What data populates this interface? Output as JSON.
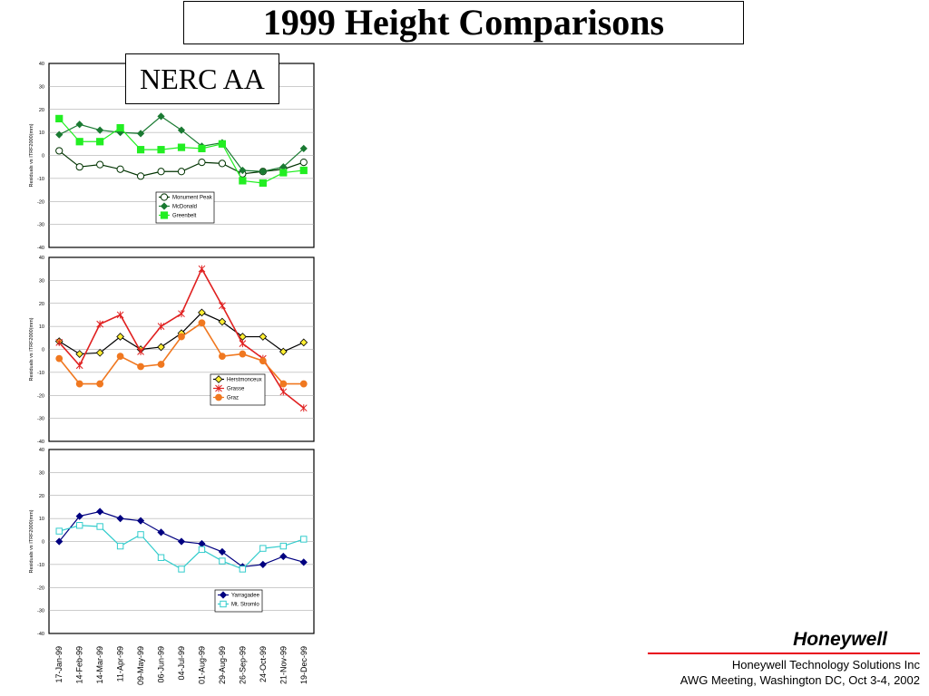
{
  "title": "1999 Height Comparisons",
  "subtitle": "NERC AA",
  "footer": {
    "brand": "Honeywell",
    "line1": "Honeywell Technology Solutions Inc",
    "line2": "AWG Meeting, Washington DC, Oct 3-4, 2002"
  },
  "chart_data": [
    {
      "type": "line",
      "ylabel": "Residuals vs ITRF2000(mm)",
      "ylim": [
        -40,
        40
      ],
      "yticks": [
        40,
        30,
        20,
        10,
        0,
        -10,
        -20,
        -30,
        -40
      ],
      "grid": true,
      "legend": "bottom-center",
      "series": [
        {
          "name": "Monument Peak",
          "color": "#003300",
          "marker": "circle-open",
          "values": [
            2,
            -5,
            -4,
            -6,
            -9,
            -7,
            -7,
            -3,
            -3.5,
            -8,
            -7,
            -6,
            -3
          ]
        },
        {
          "name": "McDonald",
          "color": "#1a7a32",
          "marker": "diamond",
          "values": [
            9,
            13.5,
            11,
            10,
            9.5,
            17,
            11,
            4,
            5.5,
            -6.5,
            -7,
            -5,
            3
          ]
        },
        {
          "name": "Greenbelt",
          "color": "#22ee22",
          "marker": "square",
          "values": [
            16,
            6,
            6,
            12,
            2.5,
            2.5,
            3.5,
            3,
            5,
            -11,
            -12,
            -7.5,
            -6.5
          ]
        }
      ]
    },
    {
      "type": "line",
      "ylabel": "Residuals vs ITRF2000(mm)",
      "ylim": [
        -40,
        40
      ],
      "yticks": [
        40,
        30,
        20,
        10,
        0,
        -10,
        -20,
        -30,
        -40
      ],
      "grid": true,
      "legend": "bottom-right",
      "series": [
        {
          "name": "Herstmonceux",
          "color": "#000000",
          "marker": "diamond-yellow",
          "values": [
            3.5,
            -2,
            -1.5,
            5.5,
            0,
            1,
            7,
            16,
            12,
            5.5,
            5.5,
            -1,
            3
          ]
        },
        {
          "name": "Grasse",
          "color": "#e02020",
          "marker": "star",
          "values": [
            3,
            -7,
            11,
            15,
            -1,
            10,
            15.5,
            35,
            19,
            2.5,
            -4,
            -18.5,
            -25.5
          ]
        },
        {
          "name": "Graz",
          "color": "#f07820",
          "marker": "circle",
          "values": [
            -4,
            -15,
            -15,
            -3,
            -7.5,
            -6.5,
            5.5,
            11.5,
            -3,
            -2,
            -5,
            -15,
            -15
          ]
        }
      ]
    },
    {
      "type": "line",
      "ylabel": "Residuals vs ITRF2000(mm)",
      "ylim": [
        -40,
        40
      ],
      "yticks": [
        40,
        30,
        20,
        10,
        0,
        -10,
        -20,
        -30,
        -40
      ],
      "grid": true,
      "legend": "bottom-right",
      "categories": [
        "17-Jan-99",
        "14-Feb-99",
        "14-Mar-99",
        "11-Apr-99",
        "09-May-99",
        "06-Jun-99",
        "04-Jul-99",
        "01-Aug-99",
        "29-Aug-99",
        "26-Sep-99",
        "24-Oct-99",
        "21-Nov-99",
        "19-Dec-99"
      ],
      "series": [
        {
          "name": "Yarragadee",
          "color": "#000080",
          "marker": "diamond",
          "values": [
            0,
            11,
            13,
            10,
            9,
            4,
            0,
            -1,
            -4.5,
            -11,
            -10,
            -6.5,
            -9
          ]
        },
        {
          "name": "Mt. Stromlo",
          "color": "#33cccc",
          "marker": "square-open",
          "values": [
            4.5,
            7,
            6.5,
            -2,
            3,
            -7,
            -12,
            -3.5,
            -8.5,
            -12,
            -3,
            -2,
            1
          ]
        }
      ]
    }
  ]
}
